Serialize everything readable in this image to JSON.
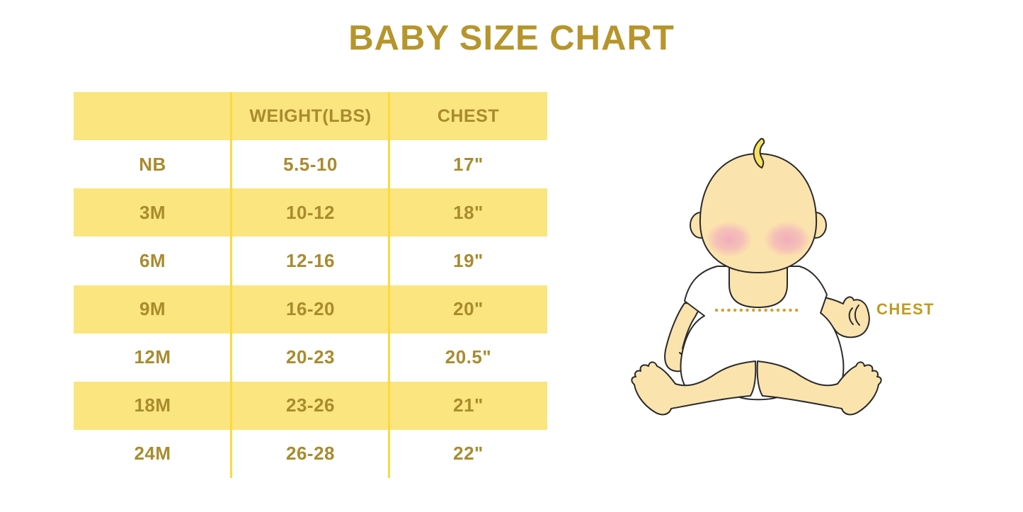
{
  "header": {
    "title": "BABY SIZE CHART"
  },
  "chart_data": {
    "type": "table",
    "title": "BABY SIZE CHART",
    "columns": [
      "",
      "WEIGHT(LBS)",
      "CHEST"
    ],
    "rows": [
      [
        "NB",
        "5.5-10",
        "17\""
      ],
      [
        "3M",
        "10-12",
        "18\""
      ],
      [
        "6M",
        "12-16",
        "19\""
      ],
      [
        "9M",
        "16-20",
        "20\""
      ],
      [
        "12M",
        "20-23",
        "20.5\""
      ],
      [
        "18M",
        "23-26",
        "21\""
      ],
      [
        "24M",
        "26-28",
        "22\""
      ]
    ]
  },
  "figure": {
    "illustration": "sitting-baby-cartoon",
    "chest_label": "CHEST"
  },
  "colors": {
    "title_gold": "#b6952c",
    "table_text_gold": "#a98b2e",
    "row_yellow": "#fae57e",
    "divider_yellow": "#fcd93f",
    "chest_label_gold": "#bf9b20",
    "dot_gold": "#d2a62e",
    "baby_skin": "#fbe3ad",
    "baby_cheek_pink": "#f0a7be",
    "baby_hair_yellow": "#f7e25f",
    "outline_dark": "#2a2a2a",
    "background": "#ffffff"
  }
}
